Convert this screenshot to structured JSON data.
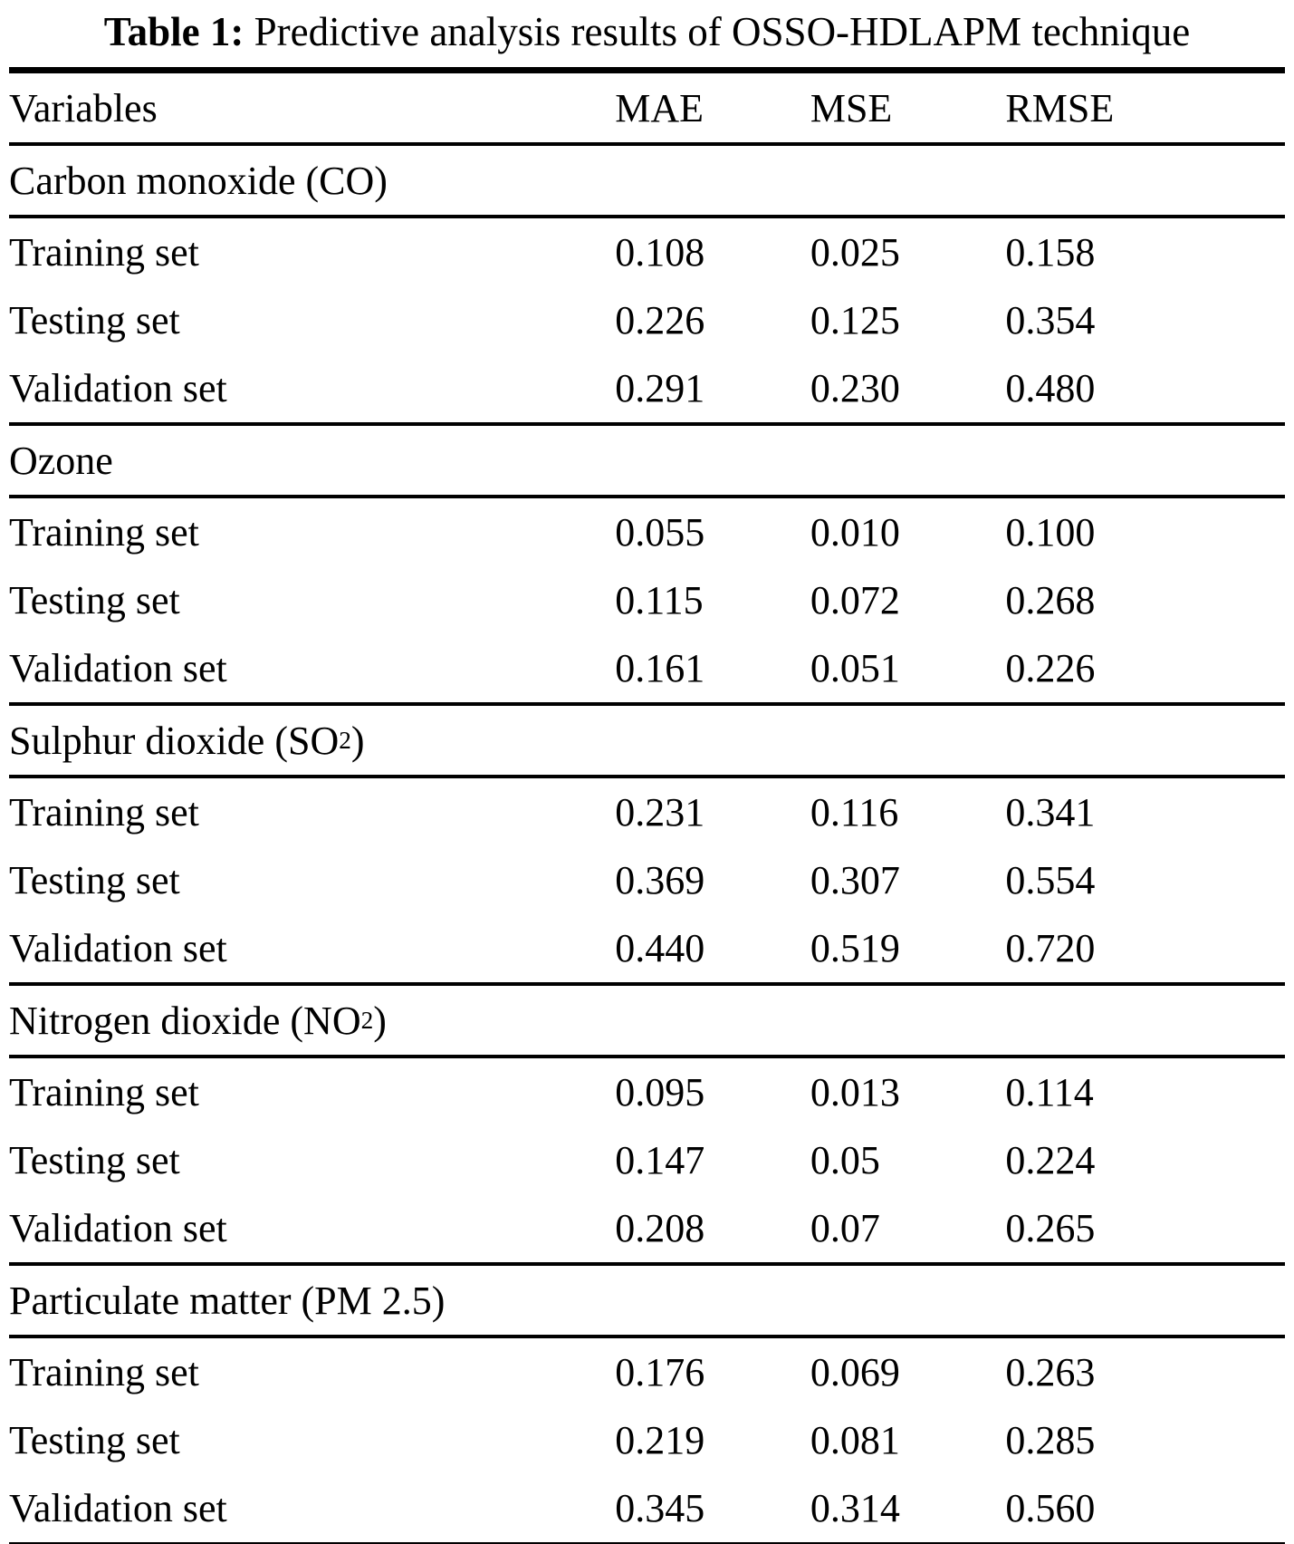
{
  "caption": {
    "label": "Table 1:",
    "text": "Predictive analysis results of OSSO-HDLAPM technique"
  },
  "table": {
    "columns": [
      "Variables",
      "MAE",
      "MSE",
      "RMSE"
    ],
    "sections": [
      {
        "title_pre": "Carbon monoxide (CO)",
        "title_sub": "",
        "title_post": "",
        "rows": [
          {
            "label": "Training set",
            "mae": "0.108",
            "mse": "0.025",
            "rmse": "0.158"
          },
          {
            "label": "Testing set",
            "mae": "0.226",
            "mse": "0.125",
            "rmse": "0.354"
          },
          {
            "label": "Validation set",
            "mae": "0.291",
            "mse": "0.230",
            "rmse": "0.480"
          }
        ]
      },
      {
        "title_pre": "Ozone",
        "title_sub": "",
        "title_post": "",
        "rows": [
          {
            "label": "Training set",
            "mae": "0.055",
            "mse": "0.010",
            "rmse": "0.100"
          },
          {
            "label": "Testing set",
            "mae": "0.115",
            "mse": "0.072",
            "rmse": "0.268"
          },
          {
            "label": "Validation set",
            "mae": "0.161",
            "mse": "0.051",
            "rmse": "0.226"
          }
        ]
      },
      {
        "title_pre": "Sulphur dioxide (SO",
        "title_sub": "2",
        "title_post": ")",
        "rows": [
          {
            "label": "Training set",
            "mae": "0.231",
            "mse": "0.116",
            "rmse": "0.341"
          },
          {
            "label": "Testing set",
            "mae": "0.369",
            "mse": "0.307",
            "rmse": "0.554"
          },
          {
            "label": "Validation set",
            "mae": "0.440",
            "mse": "0.519",
            "rmse": "0.720"
          }
        ]
      },
      {
        "title_pre": "Nitrogen dioxide (NO",
        "title_sub": "2",
        "title_post": ")",
        "rows": [
          {
            "label": "Training set",
            "mae": "0.095",
            "mse": "0.013",
            "rmse": "0.114"
          },
          {
            "label": "Testing set",
            "mae": "0.147",
            "mse": "0.05",
            "rmse": "0.224"
          },
          {
            "label": "Validation set",
            "mae": "0.208",
            "mse": "0.07",
            "rmse": "0.265"
          }
        ]
      },
      {
        "title_pre": "Particulate matter (PM 2.5)",
        "title_sub": "",
        "title_post": "",
        "rows": [
          {
            "label": "Training set",
            "mae": "0.176",
            "mse": "0.069",
            "rmse": "0.263"
          },
          {
            "label": "Testing set",
            "mae": "0.219",
            "mse": "0.081",
            "rmse": "0.285"
          },
          {
            "label": "Validation set",
            "mae": "0.345",
            "mse": "0.314",
            "rmse": "0.560"
          }
        ]
      }
    ]
  }
}
